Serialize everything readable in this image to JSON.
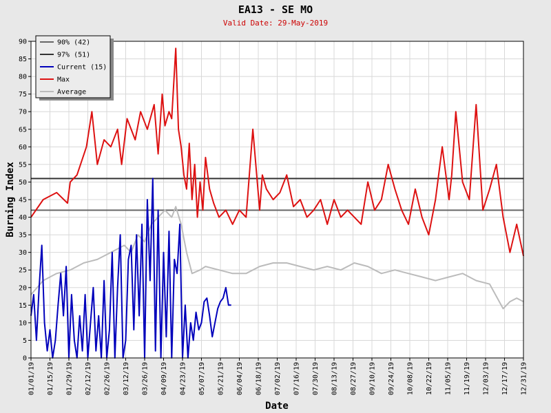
{
  "chart_data": {
    "type": "line",
    "title": "EA13 - SE MO",
    "subtitle": "Valid Date: 29-May-2019",
    "xlabel": "Date",
    "ylabel": "Burning Index",
    "ylim": [
      0,
      90
    ],
    "yticks": [
      0,
      5,
      10,
      15,
      20,
      25,
      30,
      35,
      40,
      45,
      50,
      55,
      60,
      65,
      70,
      75,
      80,
      85,
      90
    ],
    "xtick_labels": [
      "01/01/19",
      "01/15/19",
      "01/29/19",
      "02/12/19",
      "02/26/19",
      "03/12/19",
      "03/26/19",
      "04/09/19",
      "04/23/19",
      "05/07/19",
      "05/21/19",
      "06/04/19",
      "06/18/19",
      "07/02/19",
      "07/16/19",
      "07/30/19",
      "08/13/19",
      "08/27/19",
      "09/10/19",
      "09/24/19",
      "10/08/19",
      "10/22/19",
      "11/05/19",
      "11/19/19",
      "12/03/19",
      "12/17/19",
      "12/31/19"
    ],
    "grid": true,
    "legend_position": "top-left",
    "legend": [
      {
        "label": "90% (42)",
        "color": "#666666"
      },
      {
        "label": "97% (51)",
        "color": "#333333"
      },
      {
        "label": "Current (15)",
        "color": "#0000bb"
      },
      {
        "label": "Max",
        "color": "#dd1111"
      },
      {
        "label": "Average",
        "color": "#bbbbbb"
      }
    ],
    "thresholds": [
      {
        "label": "90% (42)",
        "value": 42,
        "color": "#666666"
      },
      {
        "label": "97% (51)",
        "value": 51,
        "color": "#333333"
      }
    ],
    "series": [
      {
        "name": "Max",
        "color": "#dd1111",
        "x_day": [
          1,
          10,
          20,
          28,
          30,
          35,
          42,
          46,
          50,
          55,
          60,
          65,
          68,
          72,
          78,
          82,
          87,
          92,
          95,
          98,
          100,
          103,
          105,
          108,
          110,
          112,
          114,
          116,
          118,
          120,
          122,
          124,
          126,
          128,
          130,
          133,
          136,
          140,
          145,
          150,
          155,
          160,
          165,
          170,
          172,
          175,
          180,
          185,
          190,
          195,
          200,
          205,
          210,
          215,
          220,
          225,
          230,
          235,
          240,
          245,
          250,
          255,
          260,
          265,
          270,
          275,
          280,
          285,
          290,
          295,
          300,
          305,
          310,
          312,
          315,
          320,
          325,
          330,
          335,
          340,
          345,
          350,
          355,
          360,
          365
        ],
        "values": [
          40,
          45,
          47,
          44,
          50,
          52,
          60,
          70,
          55,
          62,
          60,
          65,
          55,
          68,
          62,
          70,
          65,
          72,
          58,
          75,
          66,
          70,
          68,
          88,
          65,
          60,
          52,
          48,
          61,
          45,
          55,
          40,
          50,
          42,
          57,
          48,
          44,
          40,
          42,
          38,
          42,
          40,
          65,
          42,
          52,
          48,
          45,
          47,
          52,
          43,
          45,
          40,
          42,
          45,
          38,
          45,
          40,
          42,
          40,
          38,
          50,
          42,
          45,
          55,
          48,
          42,
          38,
          48,
          40,
          35,
          45,
          60,
          45,
          52,
          70,
          50,
          45,
          72,
          42,
          48,
          55,
          40,
          30,
          38,
          29
        ]
      },
      {
        "name": "Average",
        "color": "#bbbbbb",
        "x_day": [
          1,
          10,
          20,
          30,
          40,
          50,
          60,
          70,
          75,
          80,
          85,
          90,
          95,
          100,
          105,
          108,
          112,
          116,
          120,
          126,
          130,
          140,
          150,
          160,
          170,
          180,
          190,
          200,
          210,
          220,
          230,
          240,
          250,
          260,
          270,
          280,
          290,
          300,
          310,
          320,
          330,
          340,
          350,
          355,
          360,
          365
        ],
        "values": [
          18,
          22,
          24,
          25,
          27,
          28,
          30,
          32,
          30,
          35,
          33,
          38,
          40,
          42,
          40,
          43,
          38,
          30,
          24,
          25,
          26,
          25,
          24,
          24,
          26,
          27,
          27,
          26,
          25,
          26,
          25,
          27,
          26,
          24,
          25,
          24,
          23,
          22,
          23,
          24,
          22,
          21,
          14,
          16,
          17,
          16
        ]
      },
      {
        "name": "Current (15)",
        "color": "#0000bb",
        "x_day": [
          1,
          3,
          5,
          7,
          9,
          11,
          13,
          15,
          17,
          19,
          21,
          23,
          25,
          27,
          29,
          31,
          33,
          35,
          37,
          39,
          41,
          43,
          45,
          47,
          49,
          51,
          53,
          55,
          57,
          59,
          61,
          63,
          65,
          67,
          69,
          71,
          73,
          75,
          77,
          79,
          81,
          83,
          85,
          87,
          89,
          91,
          93,
          95,
          97,
          99,
          101,
          103,
          105,
          107,
          109,
          111,
          113,
          115,
          117,
          119,
          121,
          123,
          125,
          127,
          129,
          131,
          133,
          135,
          137,
          139,
          141,
          143,
          145,
          147,
          149
        ],
        "values": [
          12,
          18,
          5,
          20,
          32,
          10,
          2,
          8,
          0,
          5,
          15,
          24,
          12,
          26,
          0,
          18,
          5,
          0,
          12,
          2,
          18,
          0,
          10,
          20,
          2,
          12,
          0,
          22,
          0,
          8,
          30,
          0,
          20,
          35,
          0,
          5,
          28,
          32,
          8,
          35,
          12,
          38,
          0,
          45,
          22,
          51,
          2,
          42,
          0,
          30,
          6,
          36,
          0,
          28,
          24,
          38,
          0,
          15,
          0,
          10,
          5,
          13,
          8,
          10,
          16,
          17,
          12,
          6,
          10,
          14,
          16,
          17,
          20,
          15,
          15
        ]
      }
    ]
  }
}
